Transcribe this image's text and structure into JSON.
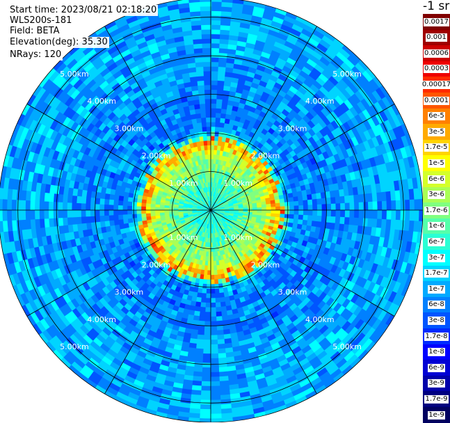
{
  "header": {
    "start_time": "Start time: 2023/08/21 02:18:20",
    "device": "WLS200s-181",
    "field": "Field: BETA",
    "elevation": "Elevation(deg): 35.30",
    "nrays": "NRays: 120"
  },
  "colorbar": {
    "unit": "-1 sr",
    "entries": [
      {
        "label": "0.0017",
        "color": "#800000"
      },
      {
        "label": "0.001",
        "color": "#a00000"
      },
      {
        "label": "0.0006",
        "color": "#cc0000"
      },
      {
        "label": "0.0003",
        "color": "#ee0000"
      },
      {
        "label": "0.00017",
        "color": "#ff2a00"
      },
      {
        "label": "0.0001",
        "color": "#ff5500"
      },
      {
        "label": "6e-5",
        "color": "#ff8000"
      },
      {
        "label": "3e-5",
        "color": "#ffaa00"
      },
      {
        "label": "1.7e-5",
        "color": "#ffd400"
      },
      {
        "label": "1e-5",
        "color": "#ffff00"
      },
      {
        "label": "6e-6",
        "color": "#d4ff2a"
      },
      {
        "label": "3e-6",
        "color": "#aaff55"
      },
      {
        "label": "1.7e-6",
        "color": "#80ff80"
      },
      {
        "label": "1e-6",
        "color": "#55ffaa"
      },
      {
        "label": "6e-7",
        "color": "#2affd4"
      },
      {
        "label": "3e-7",
        "color": "#00ffff"
      },
      {
        "label": "1.7e-7",
        "color": "#00d4ff"
      },
      {
        "label": "1e-7",
        "color": "#00aaff"
      },
      {
        "label": "6e-8",
        "color": "#0080ff"
      },
      {
        "label": "3e-8",
        "color": "#0055ff"
      },
      {
        "label": "1.7e-8",
        "color": "#002aff"
      },
      {
        "label": "1e-8",
        "color": "#0000ff"
      },
      {
        "label": "6e-9",
        "color": "#0000d4"
      },
      {
        "label": "3e-9",
        "color": "#0000aa"
      },
      {
        "label": "1.7e-9",
        "color": "#000080"
      },
      {
        "label": "1e-9",
        "color": "#000060"
      }
    ]
  },
  "chart_data": {
    "type": "heatmap",
    "projection": "polar (plan position indicator)",
    "range_max_km": 5.5,
    "range_rings_km": [
      1,
      2,
      3,
      4,
      5
    ],
    "ring_labels": [
      "1.00km",
      "2.00km",
      "3.00km",
      "4.00km",
      "5.00km"
    ],
    "spoke_count": 12,
    "nrays": 120,
    "color_scale": "log",
    "scale_range": [
      1e-09,
      0.0017
    ],
    "profile": [
      {
        "range_km": 0.0,
        "value": 6e-07
      },
      {
        "range_km": 0.5,
        "value": 6e-07
      },
      {
        "range_km": 1.0,
        "value": 1.7e-06
      },
      {
        "range_km": 1.4,
        "value": 3e-06
      },
      {
        "range_km": 1.6,
        "value": 3e-05
      },
      {
        "range_km": 1.7,
        "value": 0.0001
      },
      {
        "range_km": 1.8,
        "value": 1e-06
      },
      {
        "range_km": 2.0,
        "value": 6e-08
      },
      {
        "range_km": 3.0,
        "value": 6e-08
      },
      {
        "range_km": 4.0,
        "value": 1e-07
      },
      {
        "range_km": 5.0,
        "value": 1e-07
      },
      {
        "range_km": 5.5,
        "value": 1e-07
      }
    ]
  }
}
